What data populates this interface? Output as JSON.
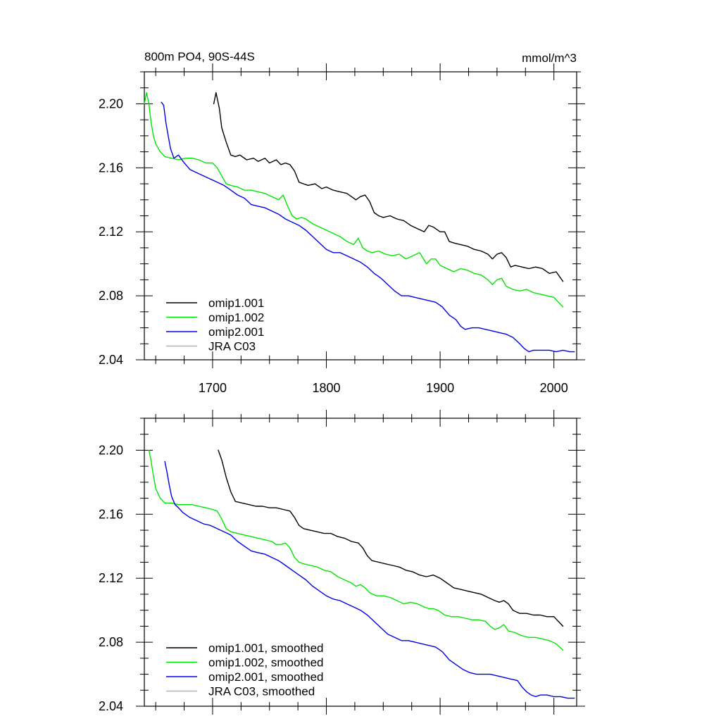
{
  "chart_data": [
    {
      "type": "line",
      "title_left": "800m PO4, 90S-44S",
      "title_right": "mmol/m^3",
      "xlim": [
        1640,
        2020
      ],
      "ylim": [
        2.04,
        2.22
      ],
      "xticks": [
        1700,
        1800,
        1900,
        2000
      ],
      "xtick_labels": [
        "1700",
        "1800",
        "1900",
        "2000"
      ],
      "yticks": [
        2.04,
        2.08,
        2.12,
        2.16,
        2.2
      ],
      "ytick_labels": [
        "2.04",
        "2.08",
        "2.12",
        "2.16",
        "2.20"
      ],
      "grid": false,
      "legend": "bottom-left",
      "series": [
        {
          "name": "omip1.001",
          "color": "#000000",
          "x": [
            1701,
            1703,
            1706,
            1708,
            1712,
            1716,
            1720,
            1724,
            1730,
            1736,
            1740,
            1746,
            1750,
            1756,
            1760,
            1764,
            1768,
            1772,
            1776,
            1780,
            1784,
            1790,
            1796,
            1800,
            1806,
            1812,
            1818,
            1822,
            1826,
            1830,
            1834,
            1838,
            1842,
            1846,
            1850,
            1856,
            1862,
            1868,
            1874,
            1880,
            1886,
            1890,
            1894,
            1900,
            1904,
            1908,
            1912,
            1918,
            1924,
            1930,
            1936,
            1942,
            1946,
            1950,
            1954,
            1958,
            1962,
            1966,
            1972,
            1978,
            1984,
            1990,
            1996,
            2002,
            2008
          ],
          "y": [
            2.2,
            2.207,
            2.197,
            2.185,
            2.176,
            2.168,
            2.167,
            2.168,
            2.165,
            2.166,
            2.164,
            2.166,
            2.163,
            2.165,
            2.162,
            2.163,
            2.162,
            2.158,
            2.151,
            2.15,
            2.149,
            2.15,
            2.147,
            2.148,
            2.146,
            2.145,
            2.144,
            2.142,
            2.14,
            2.142,
            2.143,
            2.139,
            2.132,
            2.13,
            2.129,
            2.13,
            2.128,
            2.127,
            2.124,
            2.122,
            2.12,
            2.124,
            2.123,
            2.12,
            2.12,
            2.114,
            2.113,
            2.112,
            2.111,
            2.109,
            2.108,
            2.106,
            2.103,
            2.106,
            2.107,
            2.104,
            2.098,
            2.099,
            2.098,
            2.097,
            2.098,
            2.097,
            2.094,
            2.095,
            2.089
          ]
        },
        {
          "name": "omip1.002",
          "color": "#00e600",
          "x": [
            1640,
            1642,
            1644,
            1646,
            1648,
            1650,
            1654,
            1658,
            1664,
            1670,
            1676,
            1682,
            1688,
            1694,
            1700,
            1704,
            1708,
            1712,
            1716,
            1722,
            1728,
            1734,
            1740,
            1746,
            1752,
            1758,
            1762,
            1766,
            1770,
            1774,
            1778,
            1782,
            1788,
            1794,
            1800,
            1806,
            1812,
            1818,
            1824,
            1828,
            1832,
            1836,
            1840,
            1846,
            1852,
            1858,
            1864,
            1870,
            1876,
            1882,
            1888,
            1892,
            1896,
            1900,
            1906,
            1912,
            1918,
            1924,
            1930,
            1936,
            1942,
            1946,
            1950,
            1954,
            1958,
            1964,
            1970,
            1976,
            1982,
            1988,
            1994,
            2000,
            2004,
            2008
          ],
          "y": [
            2.2,
            2.207,
            2.2,
            2.188,
            2.18,
            2.175,
            2.17,
            2.167,
            2.166,
            2.165,
            2.166,
            2.166,
            2.165,
            2.163,
            2.163,
            2.16,
            2.155,
            2.15,
            2.149,
            2.148,
            2.146,
            2.146,
            2.145,
            2.144,
            2.142,
            2.14,
            2.143,
            2.136,
            2.13,
            2.128,
            2.129,
            2.128,
            2.125,
            2.123,
            2.121,
            2.119,
            2.117,
            2.114,
            2.112,
            2.116,
            2.11,
            2.108,
            2.107,
            2.108,
            2.106,
            2.105,
            2.106,
            2.103,
            2.105,
            2.107,
            2.1,
            2.103,
            2.103,
            2.099,
            2.097,
            2.095,
            2.097,
            2.096,
            2.094,
            2.093,
            2.09,
            2.087,
            2.09,
            2.091,
            2.086,
            2.084,
            2.083,
            2.084,
            2.082,
            2.081,
            2.08,
            2.079,
            2.076,
            2.073
          ]
        },
        {
          "name": "omip2.001",
          "color": "#0000e6",
          "x": [
            1655,
            1657,
            1659,
            1661,
            1663,
            1666,
            1670,
            1674,
            1680,
            1686,
            1692,
            1698,
            1704,
            1710,
            1716,
            1722,
            1728,
            1734,
            1740,
            1746,
            1752,
            1758,
            1764,
            1770,
            1776,
            1782,
            1788,
            1794,
            1800,
            1806,
            1812,
            1818,
            1824,
            1830,
            1836,
            1842,
            1848,
            1854,
            1860,
            1866,
            1872,
            1878,
            1884,
            1890,
            1896,
            1902,
            1908,
            1914,
            1918,
            1922,
            1928,
            1934,
            1940,
            1946,
            1952,
            1958,
            1964,
            1970,
            1974,
            1978,
            1982,
            1986,
            1990,
            1996,
            2002,
            2008,
            2014,
            2018
          ],
          "y": [
            2.201,
            2.199,
            2.188,
            2.18,
            2.172,
            2.166,
            2.168,
            2.164,
            2.159,
            2.157,
            2.155,
            2.153,
            2.151,
            2.149,
            2.146,
            2.143,
            2.141,
            2.137,
            2.136,
            2.135,
            2.133,
            2.131,
            2.128,
            2.126,
            2.124,
            2.121,
            2.117,
            2.113,
            2.109,
            2.107,
            2.107,
            2.105,
            2.103,
            2.101,
            2.098,
            2.094,
            2.091,
            2.087,
            2.083,
            2.08,
            2.08,
            2.079,
            2.078,
            2.077,
            2.076,
            2.073,
            2.068,
            2.065,
            2.061,
            2.059,
            2.06,
            2.06,
            2.059,
            2.058,
            2.057,
            2.056,
            2.054,
            2.05,
            2.047,
            2.045,
            2.046,
            2.046,
            2.046,
            2.046,
            2.045,
            2.046,
            2.045,
            2.045
          ]
        },
        {
          "name": "JRA C03",
          "color": "#b4b4b4",
          "x": [],
          "y": []
        }
      ]
    },
    {
      "type": "line",
      "xlim": [
        1640,
        2020
      ],
      "ylim": [
        2.04,
        2.22
      ],
      "xticks": [
        1700,
        1800,
        1900,
        2000
      ],
      "yticks": [
        2.04,
        2.08,
        2.12,
        2.16,
        2.2
      ],
      "ytick_labels": [
        "2.04",
        "2.08",
        "2.12",
        "2.16",
        "2.20"
      ],
      "grid": false,
      "legend": "bottom-left",
      "series": [
        {
          "name": "omip1.001, smoothed",
          "color": "#000000",
          "x": [
            1705,
            1708,
            1712,
            1716,
            1720,
            1726,
            1732,
            1738,
            1744,
            1750,
            1756,
            1762,
            1768,
            1772,
            1776,
            1780,
            1786,
            1792,
            1798,
            1804,
            1810,
            1816,
            1822,
            1828,
            1832,
            1836,
            1840,
            1846,
            1852,
            1858,
            1864,
            1870,
            1876,
            1882,
            1888,
            1894,
            1900,
            1906,
            1912,
            1918,
            1924,
            1930,
            1936,
            1942,
            1948,
            1952,
            1956,
            1960,
            1964,
            1970,
            1976,
            1982,
            1988,
            1994,
            2000,
            2004,
            2008
          ],
          "y": [
            2.2,
            2.194,
            2.183,
            2.174,
            2.168,
            2.167,
            2.166,
            2.165,
            2.165,
            2.164,
            2.164,
            2.163,
            2.162,
            2.158,
            2.153,
            2.151,
            2.15,
            2.149,
            2.148,
            2.148,
            2.146,
            2.145,
            2.143,
            2.142,
            2.139,
            2.134,
            2.131,
            2.13,
            2.129,
            2.128,
            2.127,
            2.125,
            2.124,
            2.122,
            2.121,
            2.122,
            2.12,
            2.117,
            2.114,
            2.113,
            2.112,
            2.111,
            2.11,
            2.108,
            2.106,
            2.105,
            2.106,
            2.104,
            2.1,
            2.098,
            2.098,
            2.097,
            2.097,
            2.096,
            2.096,
            2.093,
            2.09
          ]
        },
        {
          "name": "omip1.002, smoothed",
          "color": "#00e600",
          "x": [
            1644,
            1646,
            1648,
            1650,
            1654,
            1658,
            1664,
            1670,
            1676,
            1682,
            1688,
            1694,
            1700,
            1704,
            1708,
            1712,
            1716,
            1722,
            1728,
            1734,
            1740,
            1746,
            1752,
            1756,
            1760,
            1764,
            1768,
            1772,
            1776,
            1780,
            1786,
            1792,
            1798,
            1804,
            1810,
            1816,
            1822,
            1826,
            1830,
            1834,
            1838,
            1844,
            1850,
            1856,
            1862,
            1868,
            1874,
            1880,
            1886,
            1890,
            1894,
            1898,
            1904,
            1910,
            1916,
            1922,
            1928,
            1934,
            1940,
            1944,
            1948,
            1952,
            1956,
            1960,
            1966,
            1972,
            1978,
            1984,
            1990,
            1996,
            2002,
            2008
          ],
          "y": [
            2.2,
            2.193,
            2.184,
            2.176,
            2.17,
            2.167,
            2.167,
            2.166,
            2.166,
            2.166,
            2.165,
            2.164,
            2.163,
            2.162,
            2.157,
            2.151,
            2.149,
            2.148,
            2.147,
            2.146,
            2.145,
            2.144,
            2.143,
            2.141,
            2.141,
            2.142,
            2.139,
            2.133,
            2.13,
            2.129,
            2.128,
            2.127,
            2.125,
            2.124,
            2.121,
            2.119,
            2.117,
            2.115,
            2.116,
            2.114,
            2.111,
            2.109,
            2.109,
            2.108,
            2.106,
            2.104,
            2.105,
            2.104,
            2.102,
            2.101,
            2.101,
            2.1,
            2.097,
            2.096,
            2.096,
            2.095,
            2.094,
            2.094,
            2.093,
            2.09,
            2.088,
            2.089,
            2.091,
            2.087,
            2.086,
            2.084,
            2.083,
            2.083,
            2.082,
            2.081,
            2.079,
            2.075
          ]
        },
        {
          "name": "omip2.001, smoothed",
          "color": "#0000e6",
          "x": [
            1658,
            1660,
            1662,
            1664,
            1667,
            1670,
            1674,
            1680,
            1686,
            1692,
            1698,
            1704,
            1710,
            1716,
            1722,
            1728,
            1734,
            1740,
            1746,
            1752,
            1758,
            1764,
            1770,
            1776,
            1782,
            1788,
            1794,
            1800,
            1806,
            1812,
            1818,
            1824,
            1830,
            1836,
            1842,
            1848,
            1854,
            1860,
            1866,
            1872,
            1878,
            1884,
            1890,
            1896,
            1902,
            1908,
            1914,
            1920,
            1926,
            1932,
            1938,
            1944,
            1950,
            1956,
            1962,
            1968,
            1972,
            1976,
            1980,
            1984,
            1988,
            1994,
            2000,
            2006,
            2012,
            2018
          ],
          "y": [
            2.193,
            2.186,
            2.178,
            2.171,
            2.166,
            2.164,
            2.161,
            2.158,
            2.156,
            2.154,
            2.153,
            2.151,
            2.149,
            2.147,
            2.143,
            2.14,
            2.137,
            2.136,
            2.135,
            2.133,
            2.131,
            2.128,
            2.125,
            2.122,
            2.119,
            2.115,
            2.112,
            2.109,
            2.107,
            2.106,
            2.104,
            2.102,
            2.1,
            2.097,
            2.093,
            2.089,
            2.085,
            2.083,
            2.081,
            2.081,
            2.08,
            2.079,
            2.078,
            2.077,
            2.074,
            2.069,
            2.066,
            2.063,
            2.061,
            2.06,
            2.06,
            2.06,
            2.059,
            2.058,
            2.057,
            2.056,
            2.052,
            2.049,
            2.047,
            2.046,
            2.047,
            2.047,
            2.046,
            2.046,
            2.045,
            2.045
          ]
        },
        {
          "name": "JRA C03, smoothed",
          "color": "#b4b4b4",
          "x": [],
          "y": []
        }
      ]
    }
  ]
}
